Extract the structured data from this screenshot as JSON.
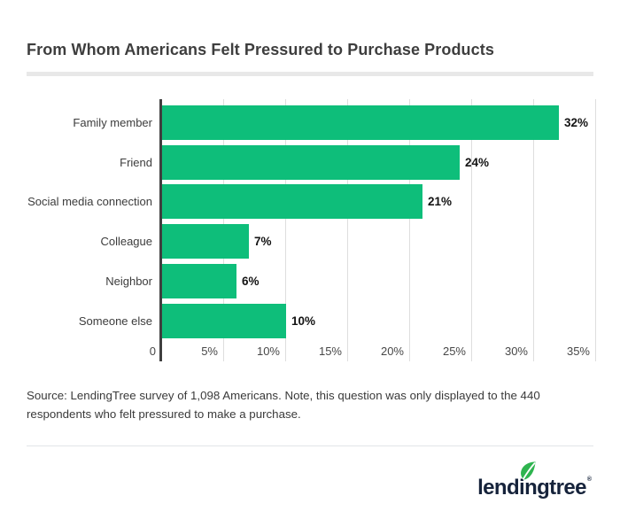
{
  "title": "From Whom Americans Felt Pressured to Purchase Products",
  "source_note": "Source: LendingTree survey of 1,098 Americans. Note, this question was only displayed to the 440 respondents who felt pressured to make a purchase.",
  "logo": {
    "text": "lendingtree",
    "registered_mark": "®",
    "leaf_icon": "leaf-icon"
  },
  "colors": {
    "bar_green": "#0EBE7A",
    "axis_dark": "#3F3F3F",
    "gridline_gray": "#DEDEDE",
    "title_rule_gray": "#E8E8E8",
    "footer_divider_gray": "#E2E5E8",
    "logo_navy": "#16233B",
    "leaf_green": "#2EB44F"
  },
  "chart_data": {
    "type": "bar",
    "orientation": "horizontal",
    "title": "From Whom Americans Felt Pressured to Purchase Products",
    "categories": [
      "Family member",
      "Friend",
      "Social media connection",
      "Colleague",
      "Neighbor",
      "Someone else"
    ],
    "values": [
      32,
      24,
      21,
      7,
      6,
      10
    ],
    "value_labels": [
      "32%",
      "24%",
      "21%",
      "7%",
      "6%",
      "10%"
    ],
    "xlabel": "",
    "ylabel": "",
    "xlim": [
      0,
      35
    ],
    "x_ticks": [
      {
        "value": 0,
        "label": "0"
      },
      {
        "value": 5,
        "label": "5%"
      },
      {
        "value": 10,
        "label": "10%"
      },
      {
        "value": 15,
        "label": "15%"
      },
      {
        "value": 20,
        "label": "20%"
      },
      {
        "value": 25,
        "label": "25%"
      },
      {
        "value": 30,
        "label": "30%"
      },
      {
        "value": 35,
        "label": "35%"
      }
    ],
    "grid": "vertical-on",
    "legend": "none",
    "bar_value_label_position": "outside-end"
  }
}
